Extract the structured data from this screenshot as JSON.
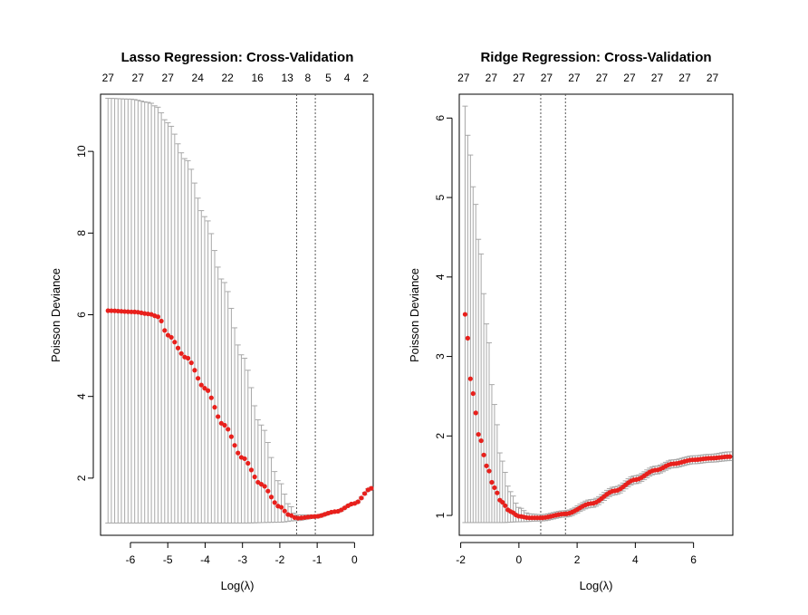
{
  "chart_data": [
    {
      "type": "scatter",
      "title": "Lasso Regression: Cross-Validation",
      "xlabel": "Log(λ)",
      "ylabel": "Poisson Deviance",
      "xlim": [
        -6.8,
        0.5
      ],
      "ylim": [
        0.6,
        11.4
      ],
      "xticks": [
        -6,
        -5,
        -4,
        -3,
        -2,
        -1,
        0
      ],
      "yticks": [
        2,
        4,
        6,
        8,
        10
      ],
      "top_ticks": [
        {
          "x": -6.6,
          "label": "27"
        },
        {
          "x": -5.8,
          "label": "27"
        },
        {
          "x": -5.0,
          "label": "27"
        },
        {
          "x": -4.2,
          "label": "24"
        },
        {
          "x": -3.4,
          "label": "22"
        },
        {
          "x": -2.6,
          "label": "16"
        },
        {
          "x": -1.8,
          "label": "13"
        },
        {
          "x": -1.25,
          "label": "8"
        },
        {
          "x": -0.7,
          "label": "5"
        },
        {
          "x": -0.2,
          "label": "4"
        },
        {
          "x": 0.3,
          "label": "2"
        }
      ],
      "vlines": [
        -1.55,
        -1.05
      ],
      "curve": {
        "x_start": -6.6,
        "x_end": 0.45,
        "n": 80,
        "mean_knots": [
          [
            -6.6,
            6.1
          ],
          [
            -5.9,
            6.07
          ],
          [
            -5.5,
            6.02
          ],
          [
            -5.25,
            5.95
          ],
          [
            -5.0,
            5.5
          ],
          [
            -4.5,
            4.95
          ],
          [
            -4.0,
            4.2
          ],
          [
            -3.5,
            3.3
          ],
          [
            -3.0,
            2.5
          ],
          [
            -2.5,
            1.85
          ],
          [
            -2.0,
            1.3
          ],
          [
            -1.75,
            1.1
          ],
          [
            -1.55,
            1.02
          ],
          [
            -1.05,
            1.06
          ],
          [
            -0.5,
            1.18
          ],
          [
            0.0,
            1.38
          ],
          [
            0.45,
            1.75
          ]
        ],
        "upper_knots": [
          [
            -6.6,
            11.3
          ],
          [
            -6.0,
            11.28
          ],
          [
            -5.5,
            11.2
          ],
          [
            -5.3,
            11.1
          ],
          [
            -5.0,
            10.7
          ],
          [
            -4.5,
            9.8
          ],
          [
            -4.0,
            8.4
          ],
          [
            -3.5,
            6.8
          ],
          [
            -3.0,
            5.0
          ],
          [
            -2.5,
            3.3
          ],
          [
            -2.0,
            1.9
          ],
          [
            -1.75,
            1.35
          ],
          [
            -1.55,
            1.1
          ],
          [
            -1.05,
            1.1
          ],
          [
            -0.5,
            1.2
          ],
          [
            0.0,
            1.4
          ],
          [
            0.45,
            1.78
          ]
        ],
        "lower_knots": [
          [
            -6.6,
            0.9
          ],
          [
            -3.0,
            0.9
          ],
          [
            -2.0,
            0.92
          ],
          [
            -1.55,
            0.96
          ],
          [
            -1.05,
            1.02
          ],
          [
            -0.5,
            1.15
          ],
          [
            0.0,
            1.36
          ],
          [
            0.45,
            1.72
          ]
        ]
      }
    },
    {
      "type": "scatter",
      "title": "Ridge Regression: Cross-Validation",
      "xlabel": "Log(λ)",
      "ylabel": "Poisson Deviance",
      "xlim": [
        -2.05,
        7.35
      ],
      "ylim": [
        0.75,
        6.3
      ],
      "xticks": [
        -2,
        0,
        2,
        4,
        6
      ],
      "yticks": [
        1,
        2,
        3,
        4,
        5,
        6
      ],
      "top_ticks": [
        {
          "x": -1.9,
          "label": "27"
        },
        {
          "x": -0.95,
          "label": "27"
        },
        {
          "x": 0.0,
          "label": "27"
        },
        {
          "x": 0.95,
          "label": "27"
        },
        {
          "x": 1.9,
          "label": "27"
        },
        {
          "x": 2.85,
          "label": "27"
        },
        {
          "x": 3.8,
          "label": "27"
        },
        {
          "x": 4.75,
          "label": "27"
        },
        {
          "x": 5.7,
          "label": "27"
        },
        {
          "x": 6.65,
          "label": "27"
        }
      ],
      "vlines": [
        0.75,
        1.6
      ],
      "curve": {
        "x_start": -1.85,
        "x_end": 7.25,
        "n": 100,
        "mean_knots": [
          [
            -1.85,
            3.53
          ],
          [
            -1.6,
            2.55
          ],
          [
            -1.35,
            1.98
          ],
          [
            -1.1,
            1.62
          ],
          [
            -0.85,
            1.35
          ],
          [
            -0.6,
            1.17
          ],
          [
            -0.3,
            1.05
          ],
          [
            0.0,
            0.99
          ],
          [
            0.35,
            0.97
          ],
          [
            0.75,
            0.97
          ],
          [
            1.6,
            1.02
          ],
          [
            2.5,
            1.15
          ],
          [
            3.3,
            1.31
          ],
          [
            4.0,
            1.45
          ],
          [
            4.7,
            1.57
          ],
          [
            5.3,
            1.65
          ],
          [
            6.0,
            1.7
          ],
          [
            6.6,
            1.72
          ],
          [
            7.25,
            1.74
          ]
        ],
        "upper_knots": [
          [
            -1.85,
            6.15
          ],
          [
            -1.7,
            5.6
          ],
          [
            -1.55,
            5.1
          ],
          [
            -1.35,
            4.4
          ],
          [
            -1.1,
            3.4
          ],
          [
            -0.85,
            2.4
          ],
          [
            -0.6,
            1.7
          ],
          [
            -0.3,
            1.3
          ],
          [
            0.0,
            1.1
          ],
          [
            0.35,
            1.02
          ],
          [
            0.75,
            1.01
          ],
          [
            1.6,
            1.06
          ],
          [
            2.5,
            1.2
          ],
          [
            3.3,
            1.36
          ],
          [
            4.0,
            1.5
          ],
          [
            4.7,
            1.62
          ],
          [
            5.3,
            1.7
          ],
          [
            6.0,
            1.75
          ],
          [
            6.6,
            1.77
          ],
          [
            7.25,
            1.8
          ]
        ],
        "lower_knots": [
          [
            -1.85,
            0.91
          ],
          [
            -0.6,
            0.91
          ],
          [
            0.0,
            0.92
          ],
          [
            0.75,
            0.93
          ],
          [
            1.6,
            0.98
          ],
          [
            2.5,
            1.1
          ],
          [
            3.3,
            1.26
          ],
          [
            4.0,
            1.4
          ],
          [
            4.7,
            1.52
          ],
          [
            5.3,
            1.6
          ],
          [
            6.0,
            1.65
          ],
          [
            6.6,
            1.67
          ],
          [
            7.25,
            1.69
          ]
        ]
      }
    }
  ]
}
